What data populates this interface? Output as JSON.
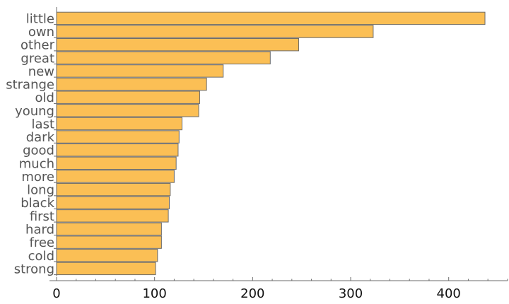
{
  "chart_data": {
    "type": "bar",
    "orientation": "horizontal",
    "categories": [
      "little",
      "own",
      "other",
      "great",
      "new",
      "strange",
      "old",
      "young",
      "last",
      "dark",
      "good",
      "much",
      "more",
      "long",
      "black",
      "first",
      "hard",
      "free",
      "cold",
      "strong"
    ],
    "values": [
      437,
      323,
      247,
      218,
      170,
      153,
      146,
      145,
      128,
      125,
      124,
      122,
      120,
      116,
      115,
      114,
      107,
      107,
      103,
      101
    ],
    "xlim": [
      0,
      460
    ],
    "x_ticks": [
      0,
      100,
      200,
      300,
      400
    ],
    "x_tick_labels": [
      "0",
      "100",
      "200",
      "300",
      "400"
    ],
    "title": "",
    "xlabel": "",
    "ylabel": "",
    "grid": false,
    "colors": {
      "bar_fill": "#FBBF55",
      "bar_stroke": "#6B6B6B",
      "axis": "#6B6B6B",
      "category_text": "#555555",
      "tick_text": "#111111"
    }
  }
}
